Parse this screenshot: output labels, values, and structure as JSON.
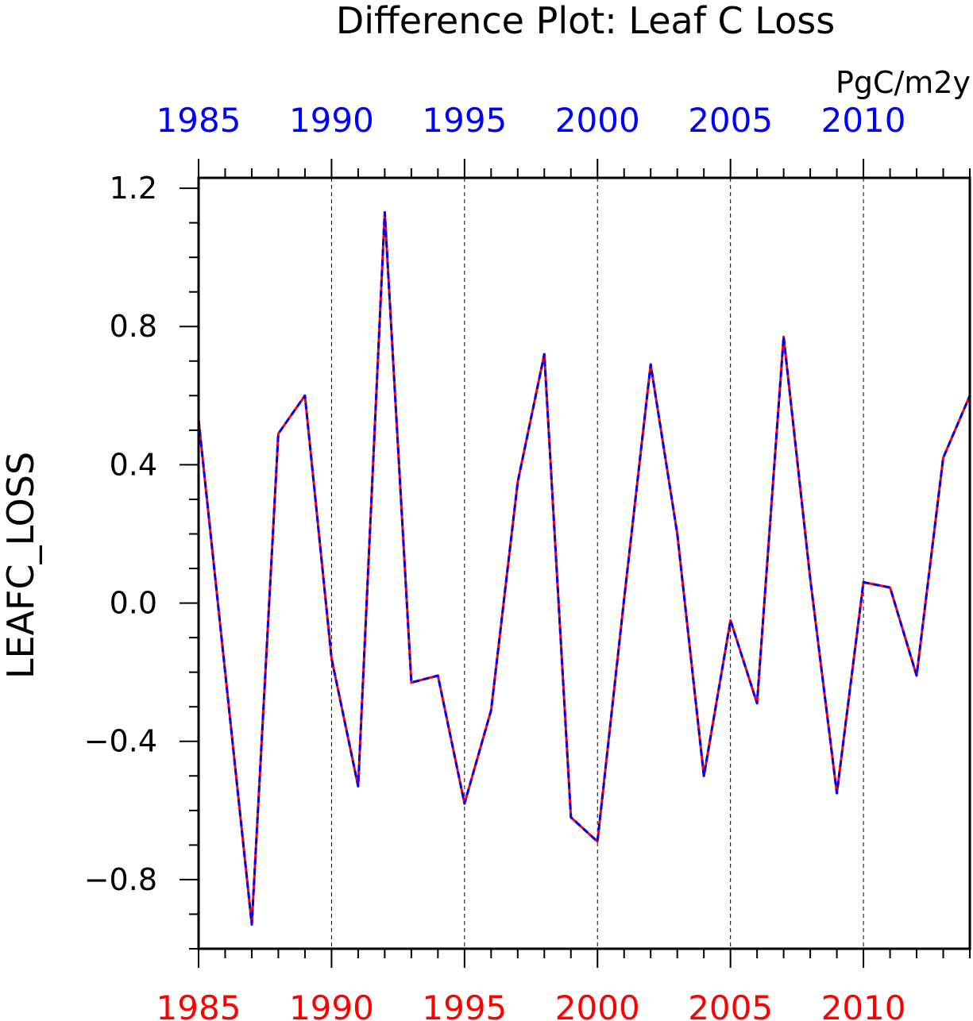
{
  "chart_data": {
    "type": "line",
    "title": "Difference Plot: Leaf C Loss",
    "units": "PgC/m2y",
    "ylabel": "LEAFC_LOSS",
    "xlabel": "",
    "xlim": [
      1985,
      2014
    ],
    "ylim": [
      -1.0,
      1.23
    ],
    "yticks": [
      "1.2",
      "0.8",
      "0.4",
      "0.0",
      "−0.4",
      "−0.8"
    ],
    "ytick_values": [
      1.2,
      0.8,
      0.4,
      0.0,
      -0.4,
      -0.8
    ],
    "xticks_top": [
      "1985",
      "1990",
      "1995",
      "2000",
      "2005",
      "2010"
    ],
    "xticks_bottom": [
      "1985",
      "1990",
      "1995",
      "2000",
      "2005",
      "2010"
    ],
    "xtick_values": [
      1985,
      1990,
      1995,
      2000,
      2005,
      2010
    ],
    "grid": "vertical dashed at major x ticks",
    "colors": {
      "top_axis_labels": "#0000ff",
      "bottom_axis_labels": "#ff0000",
      "series_1": "#ff0000",
      "series_2": "#0000ff"
    },
    "x": [
      1985,
      1986,
      1987,
      1988,
      1989,
      1990,
      1991,
      1992,
      1993,
      1994,
      1995,
      1996,
      1997,
      1998,
      1999,
      2000,
      2001,
      2002,
      2003,
      2004,
      2005,
      2006,
      2007,
      2008,
      2009,
      2010,
      2011,
      2012,
      2013,
      2014
    ],
    "series": [
      {
        "values": [
          0.53,
          -0.2,
          -0.93,
          0.49,
          0.6,
          -0.16,
          -0.53,
          1.13,
          -0.23,
          -0.21,
          -0.58,
          -0.31,
          0.35,
          0.72,
          -0.62,
          -0.69,
          0.01,
          0.69,
          0.2,
          -0.5,
          -0.05,
          -0.29,
          0.77,
          0.07,
          -0.55,
          0.06,
          0.045,
          -0.21,
          0.42,
          0.6
        ],
        "style": "solid"
      },
      {
        "values": [
          0.53,
          -0.2,
          -0.93,
          0.49,
          0.6,
          -0.16,
          -0.53,
          1.13,
          -0.23,
          -0.21,
          -0.58,
          -0.31,
          0.35,
          0.72,
          -0.62,
          -0.69,
          0.01,
          0.69,
          0.2,
          -0.5,
          -0.05,
          -0.29,
          0.77,
          0.07,
          -0.55,
          0.06,
          0.045,
          -0.21,
          0.42,
          0.6
        ],
        "style": "dashed"
      }
    ]
  }
}
